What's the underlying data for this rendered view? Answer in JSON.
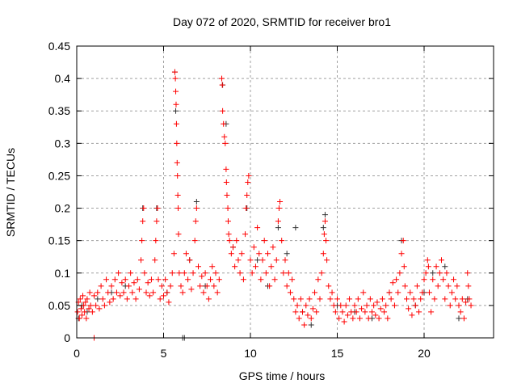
{
  "chart_data": {
    "type": "scatter",
    "title": "Day 072 of 2020, SRMTID for receiver bro1",
    "xlabel": "GPS time / hours",
    "ylabel": "SRMTID / TECUs",
    "xlim": [
      0,
      24
    ],
    "ylim": [
      0,
      0.45
    ],
    "xticks": [
      "0",
      "5",
      "10",
      "15",
      "20"
    ],
    "xtick_values": [
      0,
      5,
      10,
      15,
      20
    ],
    "yticks": [
      "0",
      "0.05",
      "0.1",
      "0.15",
      "0.2",
      "0.25",
      "0.3",
      "0.35",
      "0.4",
      "0.45"
    ],
    "ytick_values": [
      0,
      0.05,
      0.1,
      0.15,
      0.2,
      0.25,
      0.3,
      0.35,
      0.4,
      0.45
    ],
    "grid": true,
    "marker": "plus",
    "series": [
      {
        "name": "black",
        "color": "#333333",
        "points": [
          [
            0.1,
            0.03
          ],
          [
            0.3,
            0.05
          ],
          [
            0.6,
            0.04
          ],
          [
            1.2,
            0.06
          ],
          [
            2.0,
            0.07
          ],
          [
            2.8,
            0.08
          ],
          [
            3.8,
            0.2
          ],
          [
            4.6,
            0.2
          ],
          [
            5.2,
            0.07
          ],
          [
            5.65,
            0.41
          ],
          [
            5.7,
            0.35
          ],
          [
            6.1,
            0.0
          ],
          [
            6.2,
            0.0
          ],
          [
            6.5,
            0.12
          ],
          [
            6.9,
            0.21
          ],
          [
            7.4,
            0.08
          ],
          [
            8.4,
            0.39
          ],
          [
            8.6,
            0.33
          ],
          [
            9.0,
            0.14
          ],
          [
            9.8,
            0.2
          ],
          [
            10.4,
            0.12
          ],
          [
            11.0,
            0.08
          ],
          [
            11.6,
            0.17
          ],
          [
            12.1,
            0.13
          ],
          [
            12.6,
            0.17
          ],
          [
            13.0,
            0.04
          ],
          [
            13.5,
            0.02
          ],
          [
            14.3,
            0.19
          ],
          [
            14.2,
            0.17
          ],
          [
            15.0,
            0.05
          ],
          [
            16.0,
            0.04
          ],
          [
            17.0,
            0.03
          ],
          [
            18.0,
            0.07
          ],
          [
            18.7,
            0.15
          ],
          [
            19.5,
            0.05
          ],
          [
            20.0,
            0.07
          ],
          [
            20.5,
            0.1
          ],
          [
            21.2,
            0.11
          ],
          [
            22.0,
            0.03
          ],
          [
            22.5,
            0.06
          ]
        ]
      },
      {
        "name": "red",
        "color": "#ff0000",
        "points": [
          [
            0.05,
            0.04
          ],
          [
            0.1,
            0.055
          ],
          [
            0.15,
            0.03
          ],
          [
            0.2,
            0.06
          ],
          [
            0.25,
            0.045
          ],
          [
            0.3,
            0.035
          ],
          [
            0.35,
            0.065
          ],
          [
            0.4,
            0.05
          ],
          [
            0.45,
            0.04
          ],
          [
            0.5,
            0.055
          ],
          [
            0.55,
            0.03
          ],
          [
            0.6,
            0.06
          ],
          [
            0.7,
            0.045
          ],
          [
            0.75,
            0.07
          ],
          [
            0.8,
            0.05
          ],
          [
            0.9,
            0.04
          ],
          [
            1.0,
            0.0
          ],
          [
            1.0,
            0.065
          ],
          [
            1.1,
            0.05
          ],
          [
            1.2,
            0.07
          ],
          [
            1.3,
            0.045
          ],
          [
            1.4,
            0.08
          ],
          [
            1.5,
            0.06
          ],
          [
            1.6,
            0.05
          ],
          [
            1.7,
            0.09
          ],
          [
            1.8,
            0.07
          ],
          [
            1.9,
            0.055
          ],
          [
            2.0,
            0.08
          ],
          [
            2.1,
            0.06
          ],
          [
            2.2,
            0.09
          ],
          [
            2.3,
            0.07
          ],
          [
            2.4,
            0.1
          ],
          [
            2.5,
            0.065
          ],
          [
            2.6,
            0.085
          ],
          [
            2.7,
            0.07
          ],
          [
            2.8,
            0.09
          ],
          [
            2.9,
            0.06
          ],
          [
            3.0,
            0.08
          ],
          [
            3.1,
            0.1
          ],
          [
            3.2,
            0.07
          ],
          [
            3.3,
            0.085
          ],
          [
            3.4,
            0.06
          ],
          [
            3.5,
            0.09
          ],
          [
            3.6,
            0.075
          ],
          [
            3.7,
            0.12
          ],
          [
            3.75,
            0.15
          ],
          [
            3.8,
            0.18
          ],
          [
            3.85,
            0.2
          ],
          [
            3.9,
            0.1
          ],
          [
            4.0,
            0.07
          ],
          [
            4.1,
            0.085
          ],
          [
            4.2,
            0.065
          ],
          [
            4.3,
            0.09
          ],
          [
            4.4,
            0.07
          ],
          [
            4.5,
            0.12
          ],
          [
            4.55,
            0.15
          ],
          [
            4.6,
            0.18
          ],
          [
            4.65,
            0.2
          ],
          [
            4.7,
            0.09
          ],
          [
            4.8,
            0.06
          ],
          [
            4.9,
            0.08
          ],
          [
            5.0,
            0.065
          ],
          [
            5.1,
            0.09
          ],
          [
            5.2,
            0.07
          ],
          [
            5.3,
            0.055
          ],
          [
            5.4,
            0.08
          ],
          [
            5.5,
            0.1
          ],
          [
            5.6,
            0.13
          ],
          [
            5.65,
            0.41
          ],
          [
            5.68,
            0.4
          ],
          [
            5.7,
            0.38
          ],
          [
            5.72,
            0.36
          ],
          [
            5.74,
            0.33
          ],
          [
            5.76,
            0.3
          ],
          [
            5.78,
            0.27
          ],
          [
            5.8,
            0.25
          ],
          [
            5.82,
            0.22
          ],
          [
            5.84,
            0.2
          ],
          [
            5.86,
            0.16
          ],
          [
            5.9,
            0.1
          ],
          [
            6.0,
            0.08
          ],
          [
            6.1,
            0.07
          ],
          [
            6.2,
            0.1
          ],
          [
            6.3,
            0.13
          ],
          [
            6.4,
            0.09
          ],
          [
            6.5,
            0.12
          ],
          [
            6.6,
            0.075
          ],
          [
            6.7,
            0.1
          ],
          [
            6.8,
            0.15
          ],
          [
            6.85,
            0.18
          ],
          [
            6.9,
            0.2
          ],
          [
            7.0,
            0.11
          ],
          [
            7.1,
            0.08
          ],
          [
            7.2,
            0.095
          ],
          [
            7.3,
            0.07
          ],
          [
            7.4,
            0.1
          ],
          [
            7.5,
            0.08
          ],
          [
            7.6,
            0.06
          ],
          [
            7.7,
            0.09
          ],
          [
            7.8,
            0.11
          ],
          [
            7.9,
            0.08
          ],
          [
            8.0,
            0.1
          ],
          [
            8.1,
            0.07
          ],
          [
            8.2,
            0.09
          ],
          [
            8.35,
            0.4
          ],
          [
            8.38,
            0.39
          ],
          [
            8.4,
            0.35
          ],
          [
            8.45,
            0.33
          ],
          [
            8.5,
            0.31
          ],
          [
            8.55,
            0.3
          ],
          [
            8.6,
            0.26
          ],
          [
            8.62,
            0.24
          ],
          [
            8.65,
            0.22
          ],
          [
            8.7,
            0.2
          ],
          [
            8.72,
            0.18
          ],
          [
            8.75,
            0.16
          ],
          [
            8.8,
            0.15
          ],
          [
            8.9,
            0.13
          ],
          [
            9.0,
            0.14
          ],
          [
            9.1,
            0.11
          ],
          [
            9.2,
            0.15
          ],
          [
            9.3,
            0.12
          ],
          [
            9.4,
            0.1
          ],
          [
            9.5,
            0.13
          ],
          [
            9.6,
            0.09
          ],
          [
            9.7,
            0.16
          ],
          [
            9.75,
            0.2
          ],
          [
            9.8,
            0.22
          ],
          [
            9.85,
            0.24
          ],
          [
            9.9,
            0.25
          ],
          [
            10.0,
            0.12
          ],
          [
            10.1,
            0.1
          ],
          [
            10.2,
            0.14
          ],
          [
            10.3,
            0.11
          ],
          [
            10.4,
            0.17
          ],
          [
            10.5,
            0.13
          ],
          [
            10.6,
            0.09
          ],
          [
            10.7,
            0.12
          ],
          [
            10.8,
            0.15
          ],
          [
            10.9,
            0.1
          ],
          [
            11.0,
            0.13
          ],
          [
            11.1,
            0.08
          ],
          [
            11.2,
            0.11
          ],
          [
            11.3,
            0.14
          ],
          [
            11.4,
            0.09
          ],
          [
            11.5,
            0.12
          ],
          [
            11.6,
            0.18
          ],
          [
            11.65,
            0.2
          ],
          [
            11.7,
            0.21
          ],
          [
            11.8,
            0.15
          ],
          [
            11.9,
            0.1
          ],
          [
            12.0,
            0.12
          ],
          [
            12.1,
            0.08
          ],
          [
            12.2,
            0.1
          ],
          [
            12.3,
            0.07
          ],
          [
            12.4,
            0.09
          ],
          [
            12.5,
            0.06
          ],
          [
            12.6,
            0.04
          ],
          [
            12.7,
            0.05
          ],
          [
            12.8,
            0.03
          ],
          [
            12.9,
            0.06
          ],
          [
            13.0,
            0.04
          ],
          [
            13.1,
            0.02
          ],
          [
            13.2,
            0.05
          ],
          [
            13.3,
            0.035
          ],
          [
            13.4,
            0.06
          ],
          [
            13.5,
            0.03
          ],
          [
            13.6,
            0.045
          ],
          [
            13.7,
            0.07
          ],
          [
            13.8,
            0.04
          ],
          [
            13.9,
            0.09
          ],
          [
            14.0,
            0.06
          ],
          [
            14.1,
            0.1
          ],
          [
            14.2,
            0.13
          ],
          [
            14.25,
            0.16
          ],
          [
            14.3,
            0.18
          ],
          [
            14.35,
            0.15
          ],
          [
            14.4,
            0.12
          ],
          [
            14.5,
            0.08
          ],
          [
            14.6,
            0.06
          ],
          [
            14.7,
            0.07
          ],
          [
            14.8,
            0.05
          ],
          [
            14.9,
            0.04
          ],
          [
            15.0,
            0.06
          ],
          [
            15.1,
            0.03
          ],
          [
            15.2,
            0.05
          ],
          [
            15.3,
            0.04
          ],
          [
            15.4,
            0.025
          ],
          [
            15.5,
            0.05
          ],
          [
            15.6,
            0.035
          ],
          [
            15.7,
            0.06
          ],
          [
            15.8,
            0.04
          ],
          [
            15.9,
            0.03
          ],
          [
            16.0,
            0.05
          ],
          [
            16.1,
            0.04
          ],
          [
            16.2,
            0.06
          ],
          [
            16.3,
            0.03
          ],
          [
            16.4,
            0.045
          ],
          [
            16.5,
            0.07
          ],
          [
            16.6,
            0.04
          ],
          [
            16.7,
            0.05
          ],
          [
            16.8,
            0.03
          ],
          [
            16.9,
            0.06
          ],
          [
            17.0,
            0.04
          ],
          [
            17.1,
            0.05
          ],
          [
            17.2,
            0.035
          ],
          [
            17.3,
            0.055
          ],
          [
            17.4,
            0.03
          ],
          [
            17.5,
            0.045
          ],
          [
            17.6,
            0.06
          ],
          [
            17.7,
            0.04
          ],
          [
            17.8,
            0.05
          ],
          [
            17.9,
            0.03
          ],
          [
            18.0,
            0.07
          ],
          [
            18.1,
            0.06
          ],
          [
            18.2,
            0.085
          ],
          [
            18.3,
            0.05
          ],
          [
            18.4,
            0.09
          ],
          [
            18.5,
            0.07
          ],
          [
            18.6,
            0.1
          ],
          [
            18.7,
            0.13
          ],
          [
            18.8,
            0.15
          ],
          [
            18.85,
            0.11
          ],
          [
            18.9,
            0.08
          ],
          [
            19.0,
            0.06
          ],
          [
            19.1,
            0.045
          ],
          [
            19.2,
            0.07
          ],
          [
            19.3,
            0.035
          ],
          [
            19.4,
            0.06
          ],
          [
            19.5,
            0.05
          ],
          [
            19.6,
            0.08
          ],
          [
            19.7,
            0.04
          ],
          [
            19.8,
            0.06
          ],
          [
            19.9,
            0.07
          ],
          [
            20.0,
            0.09
          ],
          [
            20.1,
            0.1
          ],
          [
            20.2,
            0.12
          ],
          [
            20.25,
            0.11
          ],
          [
            20.3,
            0.07
          ],
          [
            20.4,
            0.04
          ],
          [
            20.5,
            0.09
          ],
          [
            20.6,
            0.06
          ],
          [
            20.7,
            0.11
          ],
          [
            20.8,
            0.08
          ],
          [
            20.9,
            0.1
          ],
          [
            21.0,
            0.12
          ],
          [
            21.1,
            0.09
          ],
          [
            21.2,
            0.06
          ],
          [
            21.3,
            0.1
          ],
          [
            21.4,
            0.08
          ],
          [
            21.5,
            0.05
          ],
          [
            21.6,
            0.07
          ],
          [
            21.7,
            0.09
          ],
          [
            21.8,
            0.06
          ],
          [
            21.9,
            0.08
          ],
          [
            22.0,
            0.05
          ],
          [
            22.1,
            0.04
          ],
          [
            22.2,
            0.06
          ],
          [
            22.3,
            0.03
          ],
          [
            22.4,
            0.055
          ],
          [
            22.5,
            0.1
          ],
          [
            22.55,
            0.08
          ],
          [
            22.6,
            0.06
          ],
          [
            22.7,
            0.05
          ]
        ]
      }
    ]
  }
}
